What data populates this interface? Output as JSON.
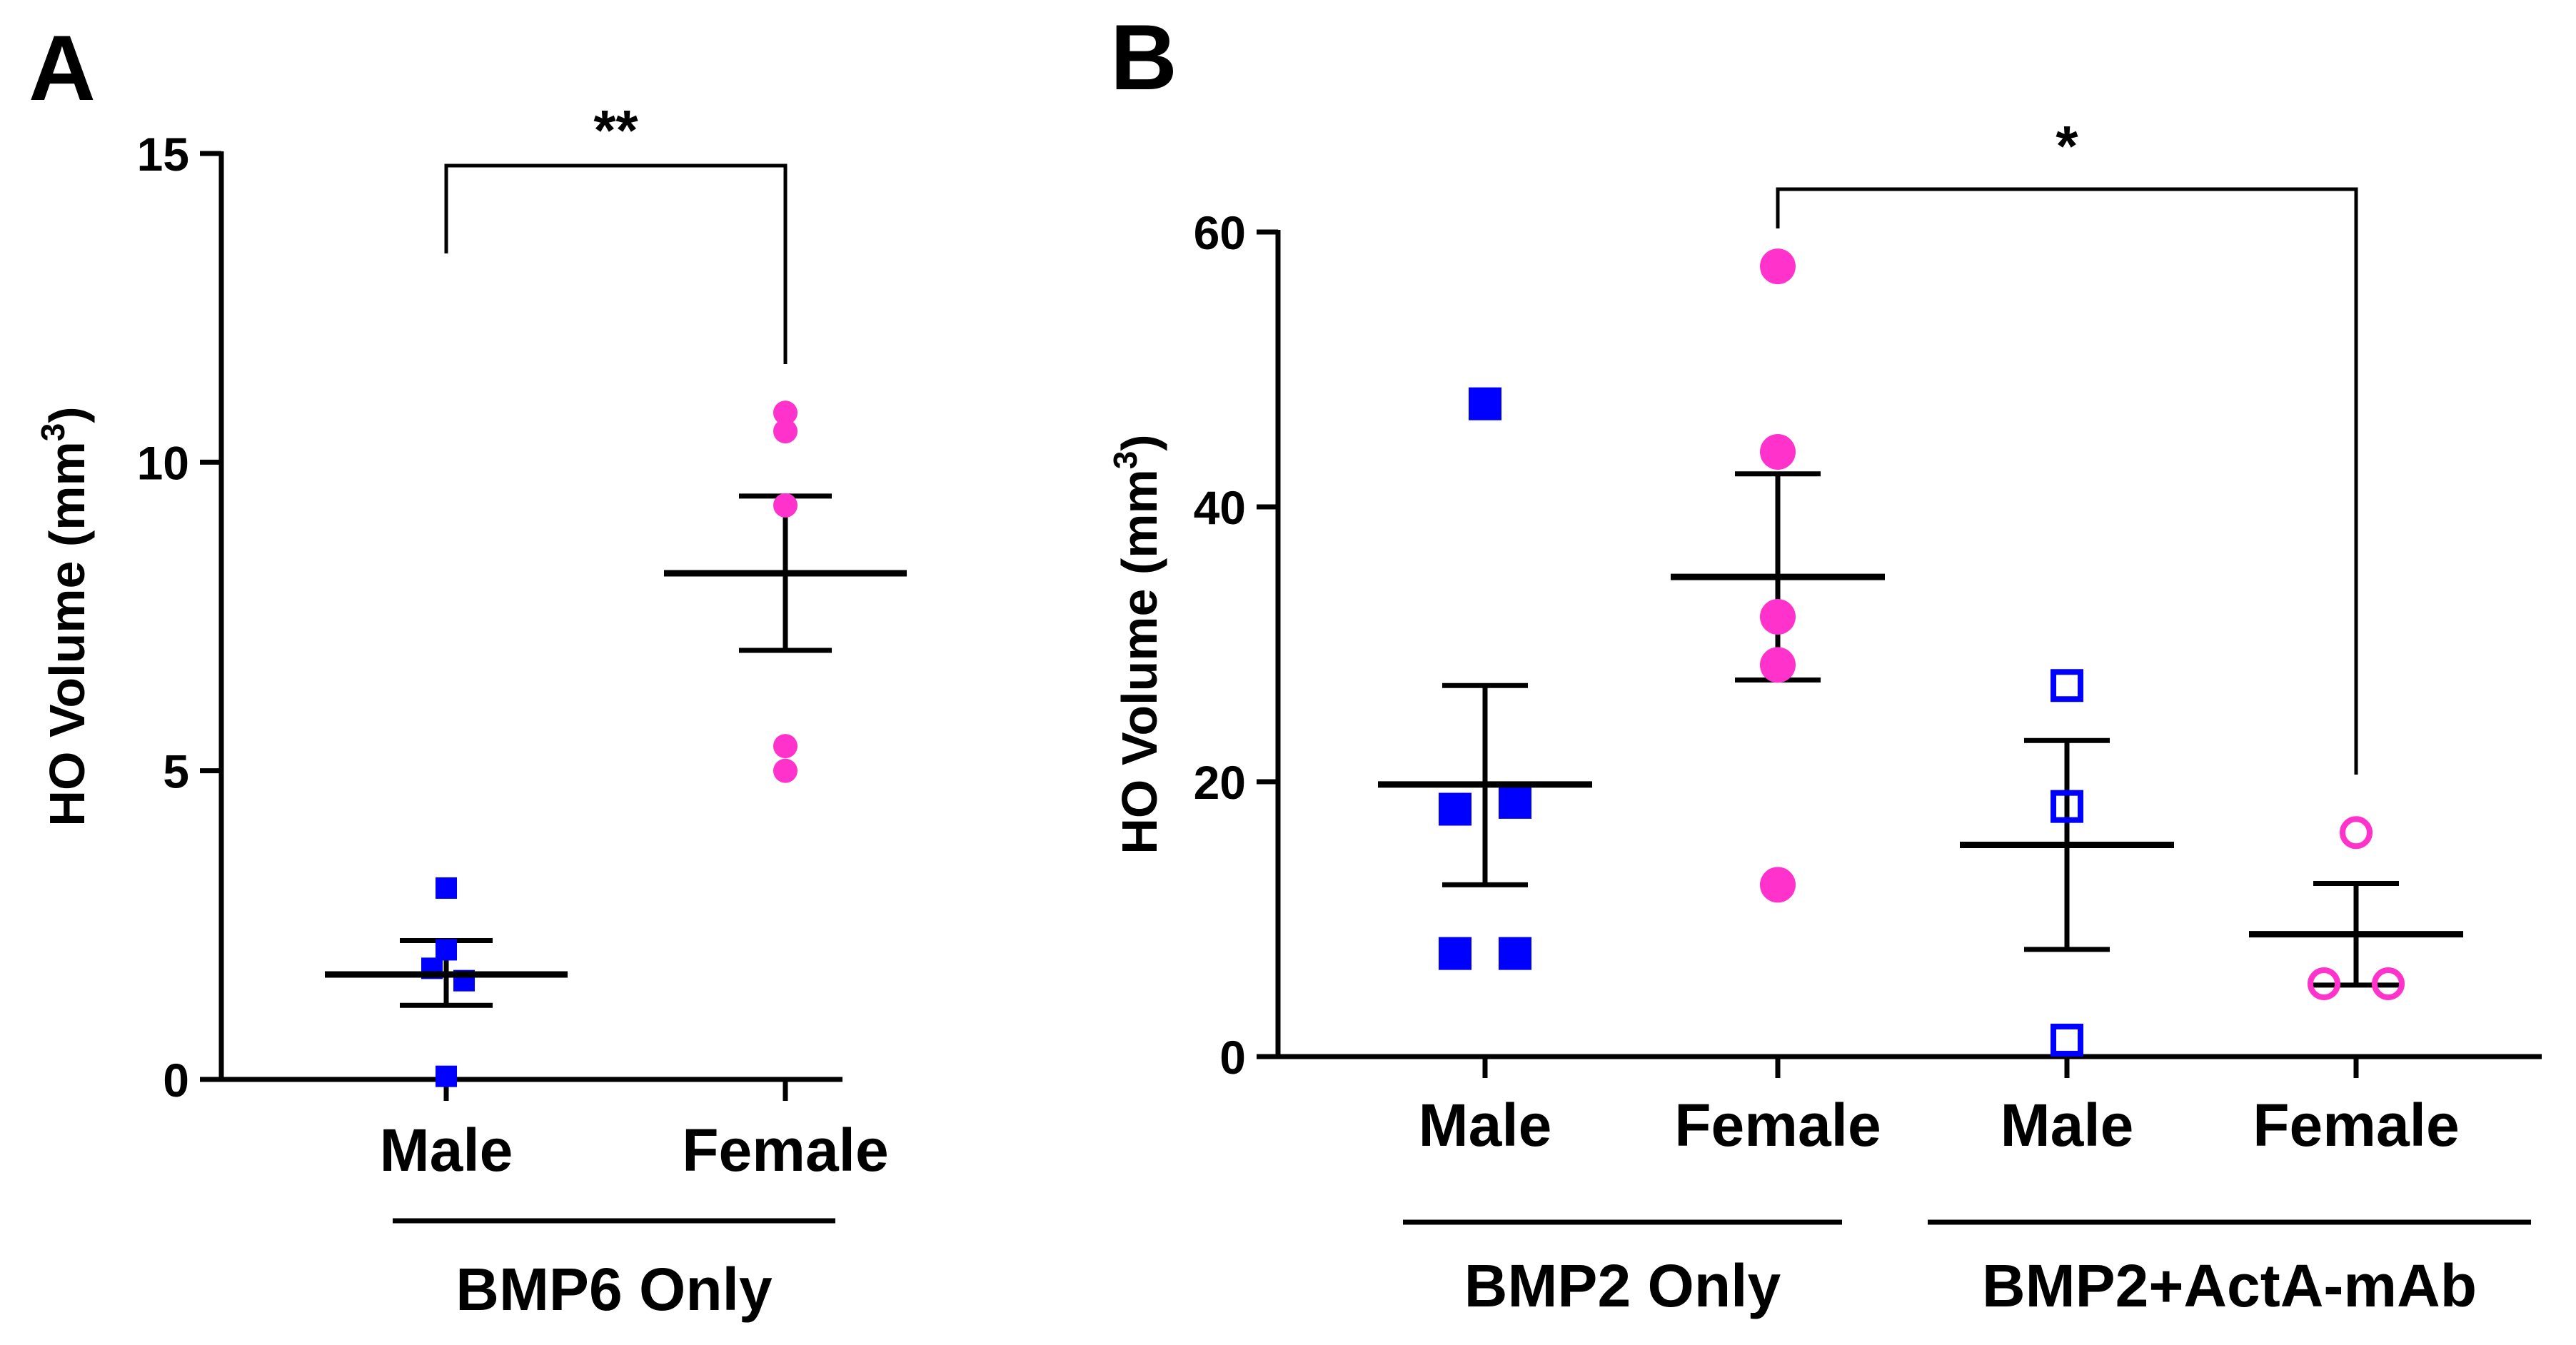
{
  "chart_data": [
    {
      "panel_label": "A",
      "type": "scatter",
      "ylabel": "HO Volume (mm",
      "ylabel_sup": "3",
      "ylabel_close": ")",
      "ylim": [
        0,
        15
      ],
      "yticks": [
        0,
        5,
        10,
        15
      ],
      "groups": [
        {
          "name": "Male",
          "marker": "square",
          "filled": true,
          "color": "#0000ff",
          "points": [
            3.1,
            2.1,
            1.8,
            1.6,
            0.05
          ],
          "mean": 1.7,
          "sem_low": 1.2,
          "sem_high": 2.25
        },
        {
          "name": "Female",
          "marker": "circle",
          "filled": true,
          "color": "#ff33cc",
          "points": [
            10.8,
            10.5,
            9.3,
            5.4,
            5.0
          ],
          "mean": 8.2,
          "sem_low": 6.95,
          "sem_high": 9.45
        }
      ],
      "group_labels": [
        {
          "label": "BMP6 Only",
          "spans": [
            0,
            1
          ]
        }
      ],
      "significance": [
        {
          "from": 0,
          "to": 1,
          "label": "**"
        }
      ]
    },
    {
      "panel_label": "B",
      "type": "scatter",
      "ylabel": "HO Volume (mm",
      "ylabel_sup": "3",
      "ylabel_close": ")",
      "ylim": [
        0,
        60
      ],
      "yticks": [
        0,
        20,
        40,
        60
      ],
      "groups": [
        {
          "name": "Male",
          "marker": "square",
          "filled": true,
          "color": "#0000ff",
          "points": [
            47.5,
            18.0,
            18.5,
            7.5,
            7.5
          ],
          "mean": 19.8,
          "sem_low": 12.5,
          "sem_high": 27.0
        },
        {
          "name": "Female",
          "marker": "circle",
          "filled": true,
          "color": "#ff33cc",
          "points": [
            57.5,
            44.0,
            32.0,
            28.5,
            12.5
          ],
          "mean": 34.9,
          "sem_low": 27.4,
          "sem_high": 42.4
        },
        {
          "name": "Male",
          "marker": "square",
          "filled": false,
          "color": "#0000ff",
          "points": [
            27.0,
            18.2,
            1.2
          ],
          "mean": 15.4,
          "sem_low": 7.8,
          "sem_high": 23.0
        },
        {
          "name": "Female",
          "marker": "circle",
          "filled": false,
          "color": "#ff33cc",
          "points": [
            16.3,
            5.3,
            5.3
          ],
          "mean": 8.9,
          "sem_low": 5.2,
          "sem_high": 12.6
        }
      ],
      "group_labels": [
        {
          "label": "BMP2 Only",
          "spans": [
            0,
            1
          ]
        },
        {
          "label": "BMP2+ActA-mAb",
          "spans": [
            2,
            3
          ]
        }
      ],
      "significance": [
        {
          "from": 1,
          "to": 3,
          "label": "*"
        }
      ]
    }
  ]
}
